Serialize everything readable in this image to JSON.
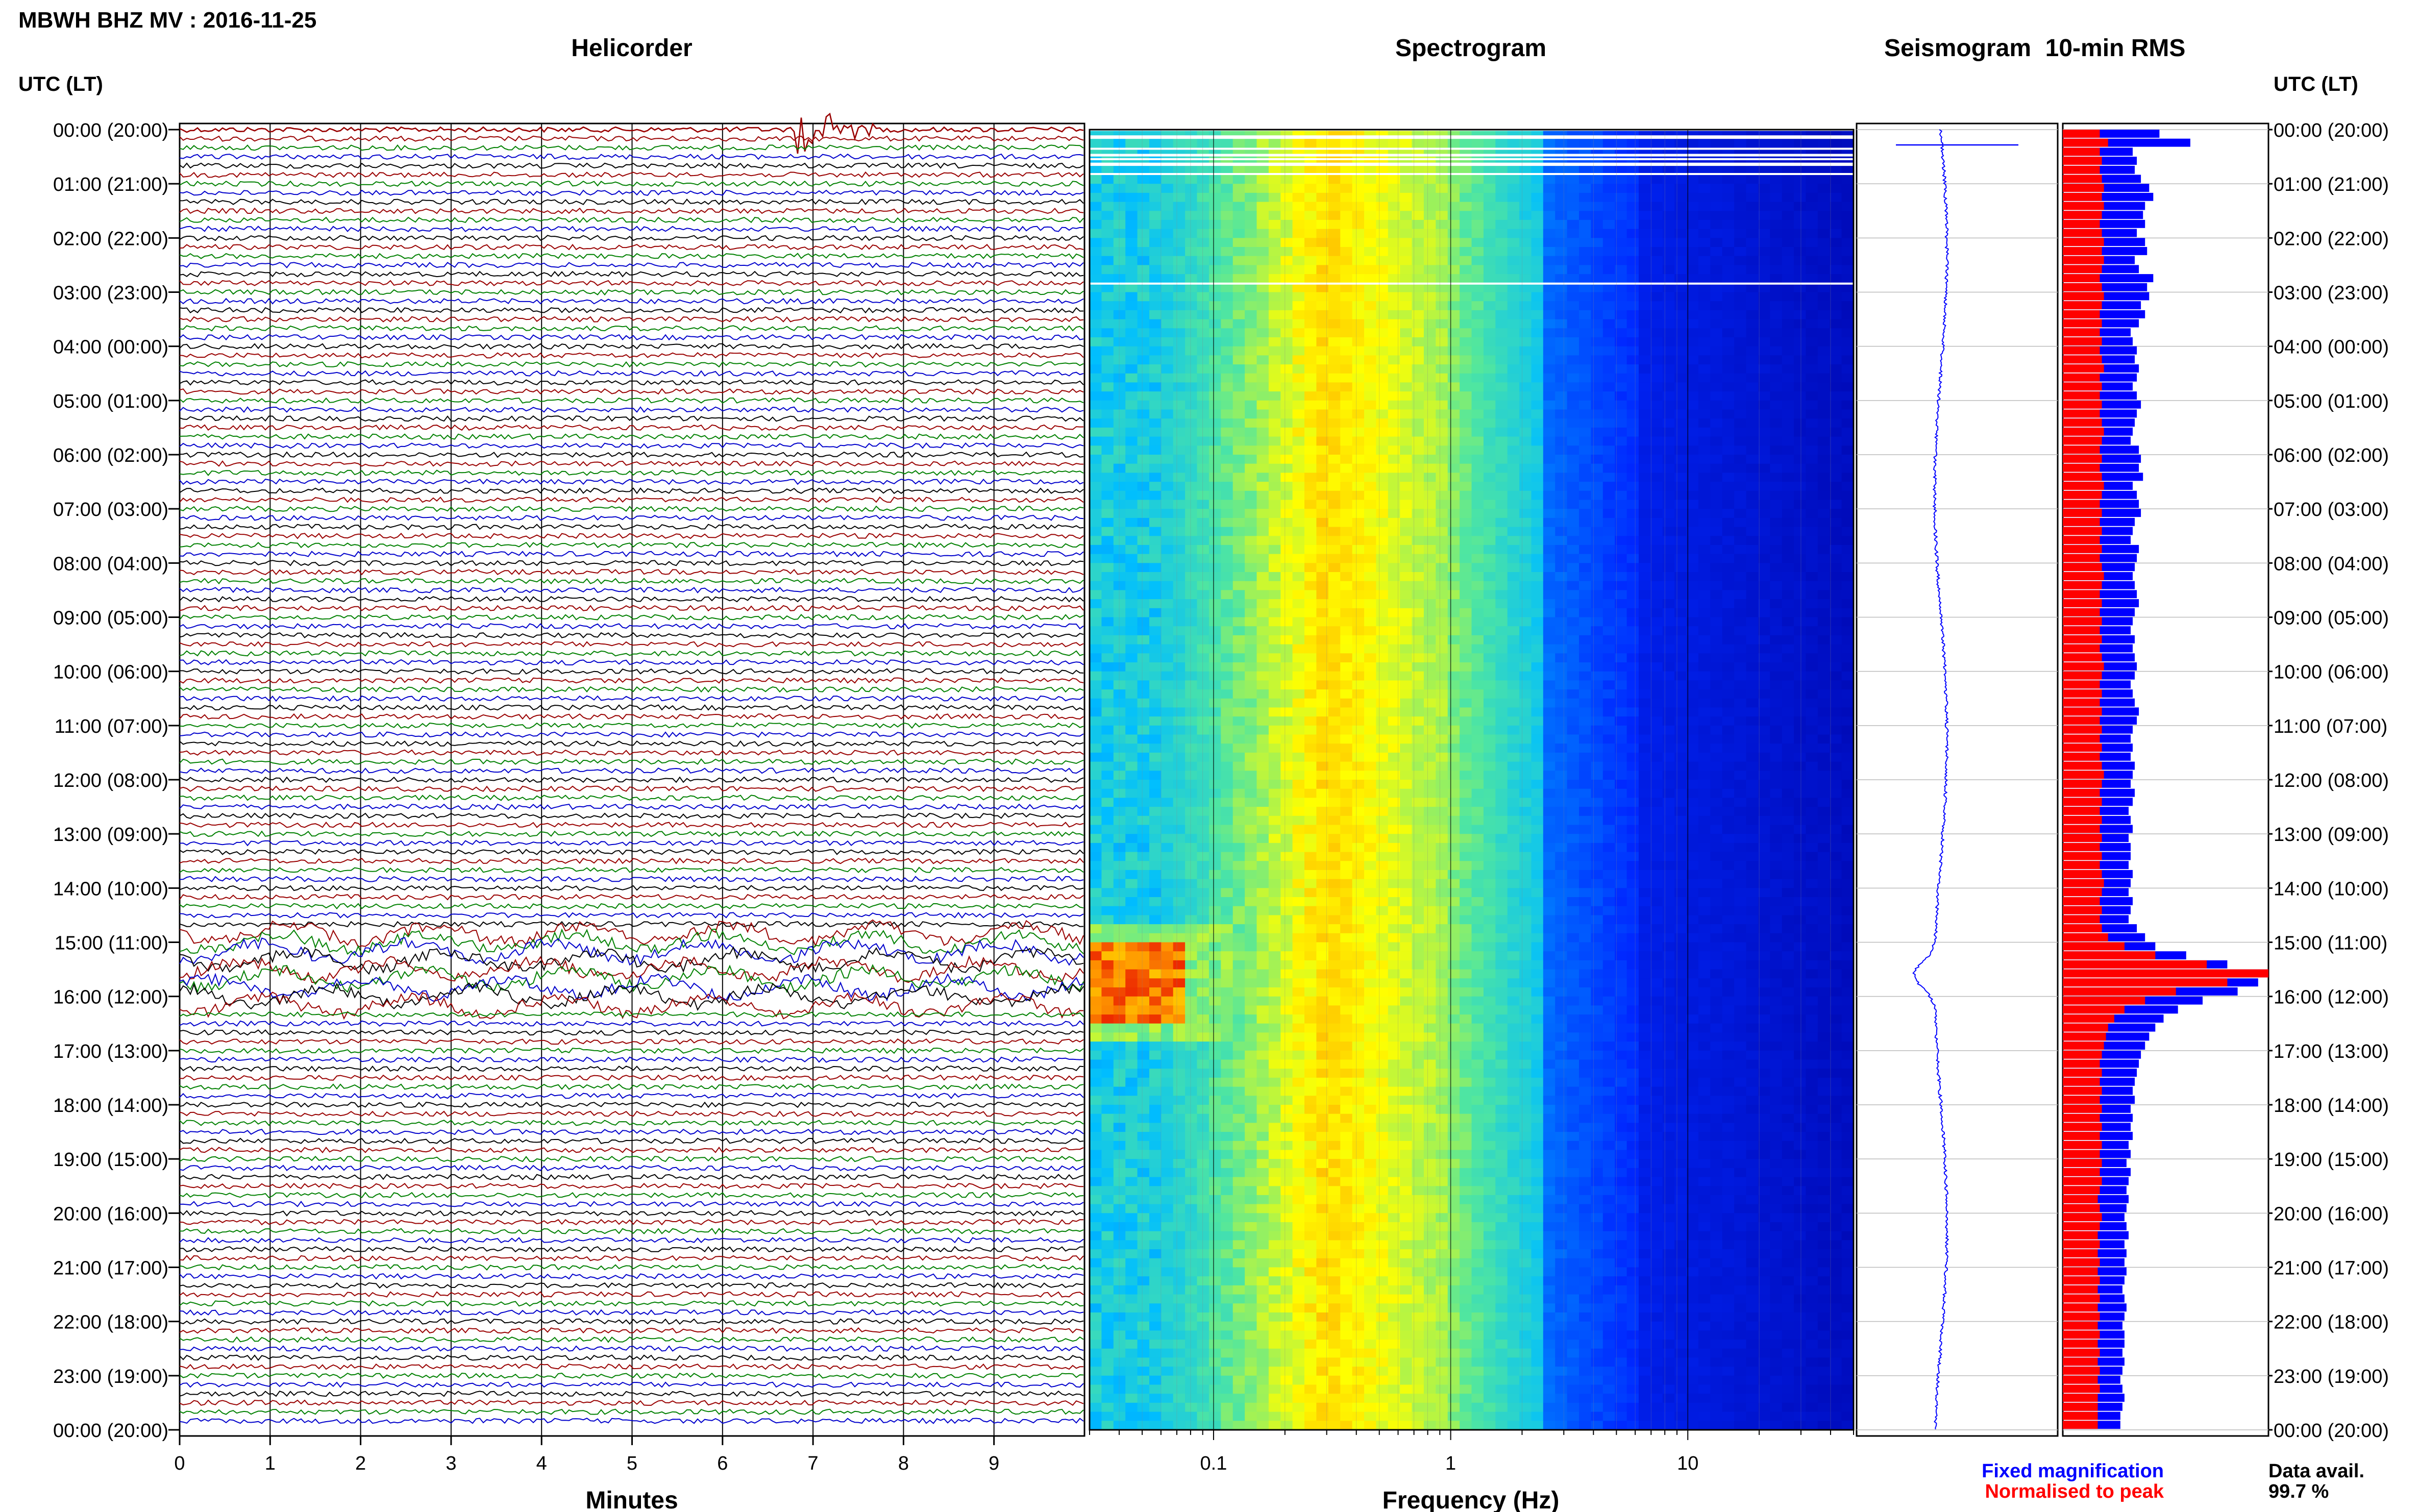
{
  "station_title": "MBWH BHZ MV : 2016-11-25",
  "utc_header_left": "UTC (LT)",
  "utc_header_right": "UTC (LT)",
  "panels": {
    "helicorder": "Helicorder",
    "spectrogram": "Spectrogram",
    "seismogram": "Seismogram",
    "rms": "10-min RMS"
  },
  "time_labels": [
    "00:00 (20:00)",
    "01:00 (21:00)",
    "02:00 (22:00)",
    "03:00 (23:00)",
    "04:00 (00:00)",
    "05:00 (01:00)",
    "06:00 (02:00)",
    "07:00 (03:00)",
    "08:00 (04:00)",
    "09:00 (05:00)",
    "10:00 (06:00)",
    "11:00 (07:00)",
    "12:00 (08:00)",
    "13:00 (09:00)",
    "14:00 (10:00)",
    "15:00 (11:00)",
    "16:00 (12:00)",
    "17:00 (13:00)",
    "18:00 (14:00)",
    "19:00 (15:00)",
    "20:00 (16:00)",
    "21:00 (17:00)",
    "22:00 (18:00)",
    "23:00 (19:00)",
    "00:00 (20:00)"
  ],
  "legend": {
    "fixed": "Fixed magnification",
    "normalised": "Normalised to peak",
    "fixed_color": "#0000ff",
    "normalised_color": "#ff0000"
  },
  "data_avail": {
    "label": "Data avail.",
    "value": "99.7 %"
  },
  "chart_data": [
    {
      "type": "line",
      "title": "Helicorder",
      "xlabel": "Minutes",
      "x_ticks": [
        "0",
        "1",
        "2",
        "3",
        "4",
        "5",
        "6",
        "7",
        "8",
        "9"
      ],
      "xlim": [
        0,
        10
      ],
      "rows": 144,
      "row_minutes": 10,
      "trace_colors": [
        "#000000",
        "#990000",
        "#008000",
        "#0000cc"
      ],
      "events": [
        {
          "time_utc": "00:00",
          "minute_start": 6.8,
          "minute_end": 7.7,
          "color": "#990000"
        },
        {
          "time_utc": "15:00-16:00",
          "minute_start": 0,
          "minute_end": 10,
          "note_color": "#000000"
        }
      ]
    },
    {
      "type": "heatmap",
      "title": "Spectrogram",
      "xlabel": "Frequency (Hz)",
      "x_scale": "log",
      "xlim": [
        0.03,
        50
      ],
      "x_ticks": [
        "0.1",
        "1",
        "10"
      ],
      "colormap": [
        "#0000ff",
        "#00ccff",
        "#ffff00",
        "#ff8000",
        "#ff0000"
      ],
      "high_energy": {
        "time_utc": "15:00-16:30",
        "freq_hz": [
          0.03,
          0.08
        ]
      },
      "peak_band_hz": [
        0.2,
        0.5
      ]
    },
    {
      "type": "line",
      "title": "Seismogram",
      "color": "#0000ff"
    },
    {
      "type": "bar",
      "title": "10-min RMS",
      "orientation": "horizontal",
      "series": [
        {
          "name": "Fixed magnification",
          "color": "#0000ff",
          "values": [
            0.47,
            0.62,
            0.34,
            0.36,
            0.35,
            0.38,
            0.42,
            0.44,
            0.4,
            0.39,
            0.4,
            0.36,
            0.4,
            0.41,
            0.35,
            0.37,
            0.44,
            0.41,
            0.42,
            0.38,
            0.4,
            0.37,
            0.33,
            0.34,
            0.36,
            0.35,
            0.37,
            0.36,
            0.34,
            0.36,
            0.38,
            0.36,
            0.35,
            0.34,
            0.33,
            0.37,
            0.38,
            0.37,
            0.39,
            0.34,
            0.36,
            0.37,
            0.38,
            0.35,
            0.34,
            0.33,
            0.37,
            0.36,
            0.35,
            0.34,
            0.35,
            0.36,
            0.37,
            0.35,
            0.34,
            0.33,
            0.35,
            0.34,
            0.35,
            0.36,
            0.35,
            0.33,
            0.34,
            0.35,
            0.37,
            0.36,
            0.34,
            0.33,
            0.34,
            0.33,
            0.35,
            0.34,
            0.33,
            0.35,
            0.34,
            0.32,
            0.33,
            0.34,
            0.32,
            0.33,
            0.33,
            0.32,
            0.34,
            0.33,
            0.32,
            0.34,
            0.33,
            0.32,
            0.36,
            0.4,
            0.45,
            0.6,
            0.8,
            1.0,
            0.95,
            0.85,
            0.68,
            0.56,
            0.49,
            0.45,
            0.42,
            0.4,
            0.38,
            0.37,
            0.36,
            0.35,
            0.34,
            0.35,
            0.33,
            0.34,
            0.33,
            0.34,
            0.32,
            0.33,
            0.31,
            0.33,
            0.32,
            0.31,
            0.32,
            0.31,
            0.3,
            0.31,
            0.32,
            0.3,
            0.31,
            0.3,
            0.31,
            0.3,
            0.29,
            0.3,
            0.31,
            0.3,
            0.29,
            0.3,
            0.3,
            0.29,
            0.3,
            0.29,
            0.28,
            0.29,
            0.3,
            0.29,
            0.28,
            0.28
          ]
        },
        {
          "name": "Normalised to peak",
          "color": "#ff0000",
          "values": [
            0.18,
            0.22,
            0.18,
            0.19,
            0.18,
            0.19,
            0.2,
            0.19,
            0.2,
            0.19,
            0.18,
            0.19,
            0.2,
            0.19,
            0.2,
            0.19,
            0.18,
            0.19,
            0.2,
            0.19,
            0.18,
            0.19,
            0.18,
            0.19,
            0.18,
            0.19,
            0.2,
            0.18,
            0.19,
            0.18,
            0.19,
            0.18,
            0.19,
            0.2,
            0.19,
            0.18,
            0.19,
            0.18,
            0.19,
            0.2,
            0.19,
            0.18,
            0.19,
            0.18,
            0.19,
            0.18,
            0.19,
            0.18,
            0.19,
            0.2,
            0.19,
            0.18,
            0.19,
            0.18,
            0.19,
            0.18,
            0.19,
            0.18,
            0.19,
            0.2,
            0.19,
            0.18,
            0.19,
            0.18,
            0.19,
            0.18,
            0.19,
            0.18,
            0.19,
            0.18,
            0.19,
            0.2,
            0.19,
            0.18,
            0.19,
            0.18,
            0.19,
            0.18,
            0.19,
            0.18,
            0.19,
            0.18,
            0.19,
            0.2,
            0.19,
            0.18,
            0.19,
            0.18,
            0.19,
            0.22,
            0.3,
            0.45,
            0.7,
            1.0,
            0.8,
            0.55,
            0.4,
            0.3,
            0.25,
            0.22,
            0.21,
            0.2,
            0.19,
            0.18,
            0.19,
            0.18,
            0.19,
            0.18,
            0.19,
            0.18,
            0.19,
            0.18,
            0.19,
            0.18,
            0.19,
            0.18,
            0.19,
            0.18,
            0.17,
            0.18,
            0.19,
            0.18,
            0.17,
            0.18,
            0.17,
            0.18,
            0.17,
            0.18,
            0.17,
            0.18,
            0.17,
            0.18,
            0.17,
            0.18,
            0.17,
            0.18,
            0.17,
            0.18,
            0.17,
            0.18,
            0.17,
            0.17,
            0.17,
            0.17
          ]
        }
      ]
    }
  ]
}
